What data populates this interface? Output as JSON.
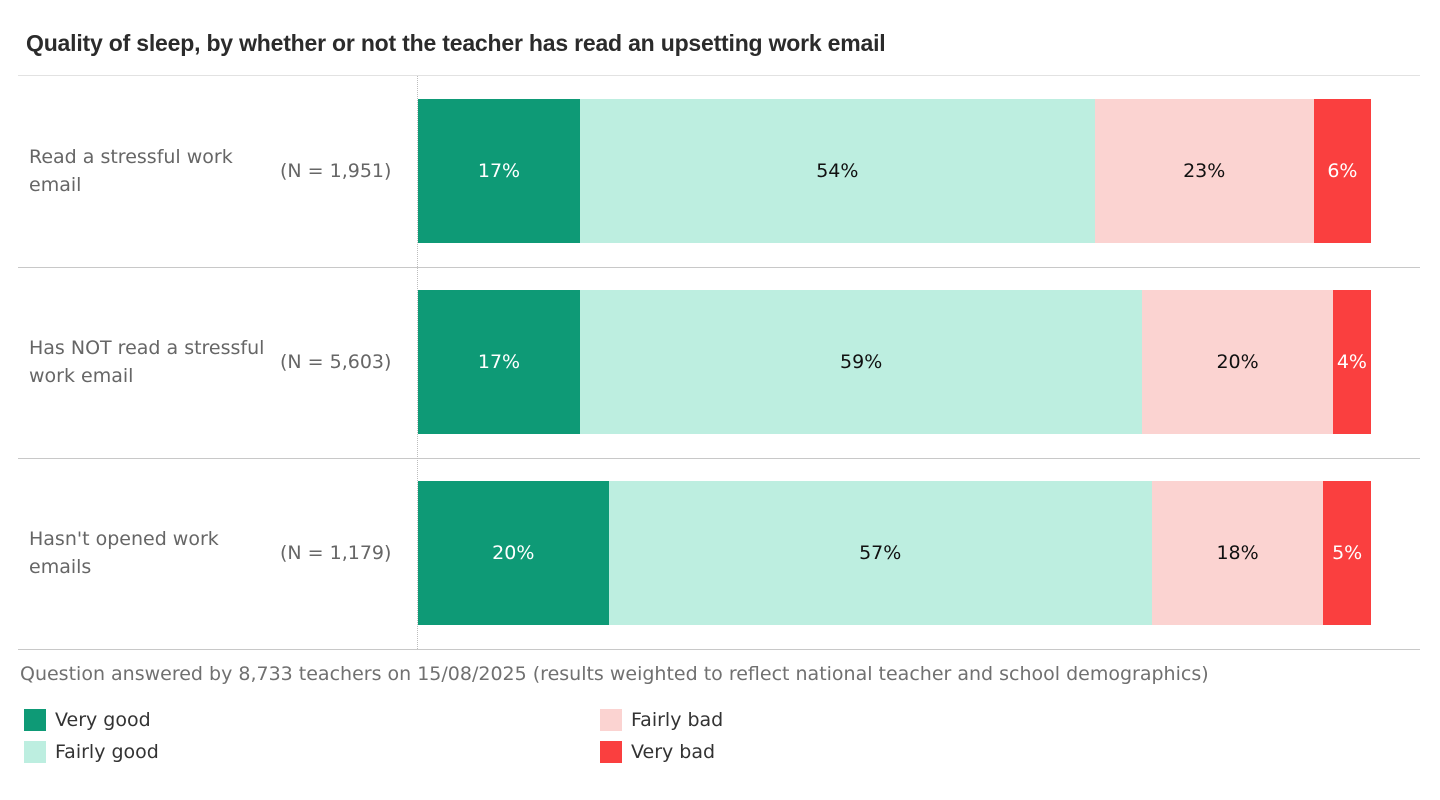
{
  "chart_data": {
    "type": "bar",
    "orientation": "horizontal",
    "stacked": true,
    "title": "Quality of sleep, by whether or not the teacher has read an upsetting work email",
    "categories": [
      "Read a stressful work email",
      "Has NOT read a stressful work email",
      "Hasn't opened work emails"
    ],
    "sample_sizes": [
      "(N = 1,951)",
      "(N = 5,603)",
      "(N = 1,179)"
    ],
    "series": [
      {
        "name": "Very good",
        "color": "#0e9a76",
        "text_color": "#ffffff",
        "values": [
          17,
          17,
          20
        ],
        "labels": [
          "17%",
          "17%",
          "20%"
        ]
      },
      {
        "name": "Fairly good",
        "color": "#bdeee0",
        "text_color": "#111111",
        "values": [
          54,
          59,
          57
        ],
        "labels": [
          "54%",
          "59%",
          "57%"
        ]
      },
      {
        "name": "Fairly bad",
        "color": "#fbd3d1",
        "text_color": "#111111",
        "values": [
          23,
          20,
          18
        ],
        "labels": [
          "23%",
          "20%",
          "18%"
        ]
      },
      {
        "name": "Very bad",
        "color": "#fa3f3f",
        "text_color": "#ffffff",
        "values": [
          6,
          4,
          5
        ],
        "labels": [
          "6%",
          "4%",
          "5%"
        ]
      }
    ],
    "xlim": [
      0,
      100
    ],
    "grid": false,
    "legend_placement": "bottom"
  },
  "footer": "Question answered by 8,733 teachers on 15/08/2025 (results weighted to reflect national teacher and school demographics)"
}
